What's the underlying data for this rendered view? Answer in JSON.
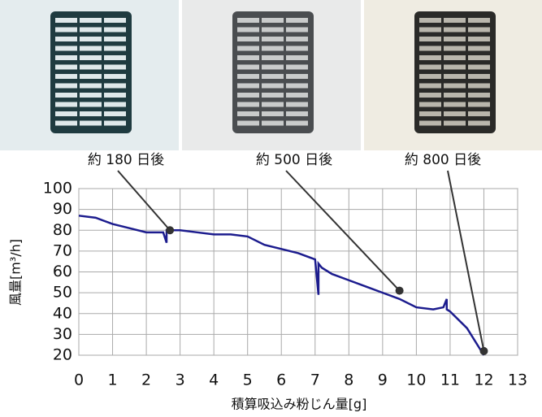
{
  "chart_data": {
    "type": "line",
    "xlabel": "積算吸込み粉じん量[g]",
    "ylabel": "風量[m³/h]",
    "xlim": [
      0,
      13
    ],
    "xticks": [
      0,
      1,
      2,
      3,
      4,
      5,
      6,
      7,
      8,
      9,
      10,
      11,
      12,
      13
    ],
    "ylim": [
      20,
      100
    ],
    "yticks": [
      20,
      30,
      40,
      50,
      60,
      70,
      80,
      90,
      100
    ],
    "grid": true,
    "series": [
      {
        "color": "#1c1c8e",
        "x": [
          0,
          0.5,
          1,
          1.5,
          2,
          2.5,
          2.6,
          2.6,
          2.7,
          3,
          3.5,
          4,
          4.5,
          5,
          5.5,
          6,
          6.5,
          7,
          7.1,
          7.1,
          7.2,
          7.5,
          8,
          8.5,
          9,
          9.5,
          10,
          10.5,
          10.8,
          10.9,
          10.9,
          11,
          11.5,
          12
        ],
        "values": [
          87,
          86,
          83,
          81,
          79,
          79,
          74,
          80,
          80,
          80,
          79,
          78,
          78,
          77,
          73,
          71,
          69,
          66,
          49,
          64,
          62,
          59,
          56,
          53,
          50,
          47,
          43,
          42,
          43,
          47,
          42,
          41,
          33,
          20
        ]
      }
    ],
    "annotations": [
      {
        "text": "約 180 日後",
        "x": 2.7,
        "y": 80
      },
      {
        "text": "約 500 日後",
        "x": 9.5,
        "y": 51
      },
      {
        "text": "約 800 日後",
        "x": 12,
        "y": 22
      }
    ]
  }
}
